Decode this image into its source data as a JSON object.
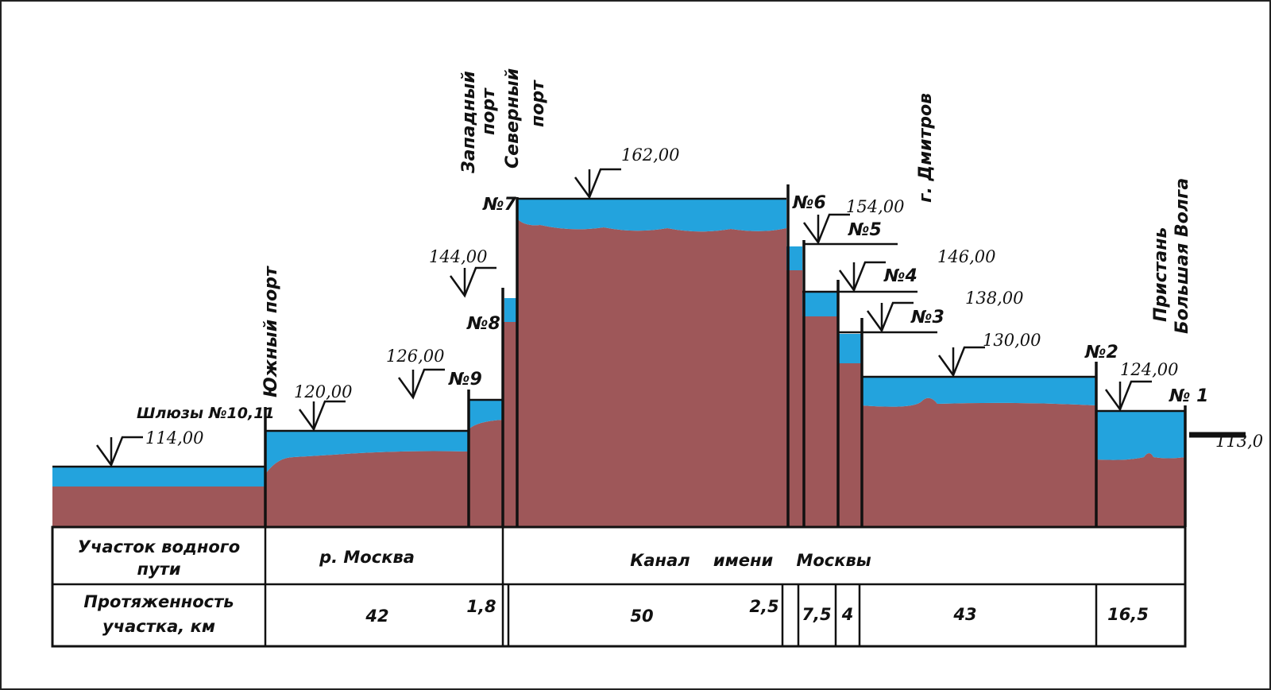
{
  "colors": {
    "water": "#23a3dd",
    "ground": "#9e5759",
    "ink": "#111111"
  },
  "levels": [
    "114,00",
    "120,00",
    "126,00",
    "144,00",
    "162,00",
    "154,00",
    "146,00",
    "138,00",
    "130,00",
    "124,00",
    "113,0"
  ],
  "locks": {
    "l10_11": "Шлюзы №10,11",
    "l9": "№9",
    "l8": "№8",
    "l7": "№7",
    "l6": "№6",
    "l5": "№5",
    "l4": "№4",
    "l3": "№3",
    "l2": "№2",
    "l1": "№ 1"
  },
  "places": {
    "yuzhny": "Южный порт",
    "zapadny": [
      "Западный",
      "порт"
    ],
    "severny": [
      "Северный",
      "порт"
    ],
    "dmitrov": "г. Дмитров",
    "pristan": [
      "Пристань",
      "Большая Волга"
    ]
  },
  "table": {
    "row1_header": [
      "Участок водного",
      "пути"
    ],
    "row2_header": [
      "Протяженность",
      "участка, км"
    ],
    "sections": [
      "р. Москва",
      "Канал    имени    Москвы"
    ],
    "lengths": [
      "42",
      "1,8",
      "50",
      "2,5",
      "7,5",
      "4",
      "43",
      "16,5"
    ]
  }
}
